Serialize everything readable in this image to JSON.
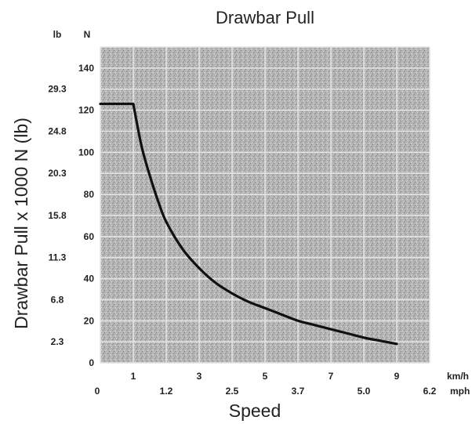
{
  "chart_data": {
    "type": "line",
    "title": "Drawbar Pull",
    "ylabel": "Drawbar Pull x 1000 N (lb)",
    "xlabel": "Speed",
    "units": {
      "left_outer": "lb",
      "left_inner": "N",
      "x_primary": "km/h",
      "x_secondary": "mph"
    },
    "xlim": [
      0,
      10
    ],
    "ylim": [
      0,
      150
    ],
    "y_ticks": [
      "0",
      "20",
      "40",
      "60",
      "80",
      "100",
      "120",
      "140"
    ],
    "y_ticks_lb": [
      "2.3",
      "6.8",
      "11.3",
      "15.8",
      "20.3",
      "24.8",
      "29.3"
    ],
    "x_ticks_kmh": [
      "1",
      "3",
      "5",
      "7",
      "9"
    ],
    "x_ticks_mph": [
      "0",
      "1.2",
      "2.5",
      "3.7",
      "5.0",
      "6.2"
    ],
    "grid": true,
    "series": [
      {
        "x": [
          0,
          1.0,
          1.25,
          1.5,
          1.75,
          2.0,
          2.5,
          3.0,
          3.5,
          4.0,
          4.5,
          5.0,
          5.5,
          6.0,
          6.5,
          7.0,
          7.5,
          8.0,
          8.5,
          9.0
        ],
        "y": [
          123,
          123,
          103,
          89,
          77,
          67,
          54,
          45,
          38,
          33,
          29,
          26,
          23,
          20,
          18,
          16,
          14,
          12,
          10.5,
          9
        ]
      }
    ],
    "colors": {
      "line": "#111111",
      "grid_bg": "#b8b8b8",
      "grid_line": "#e4e4e4"
    }
  }
}
